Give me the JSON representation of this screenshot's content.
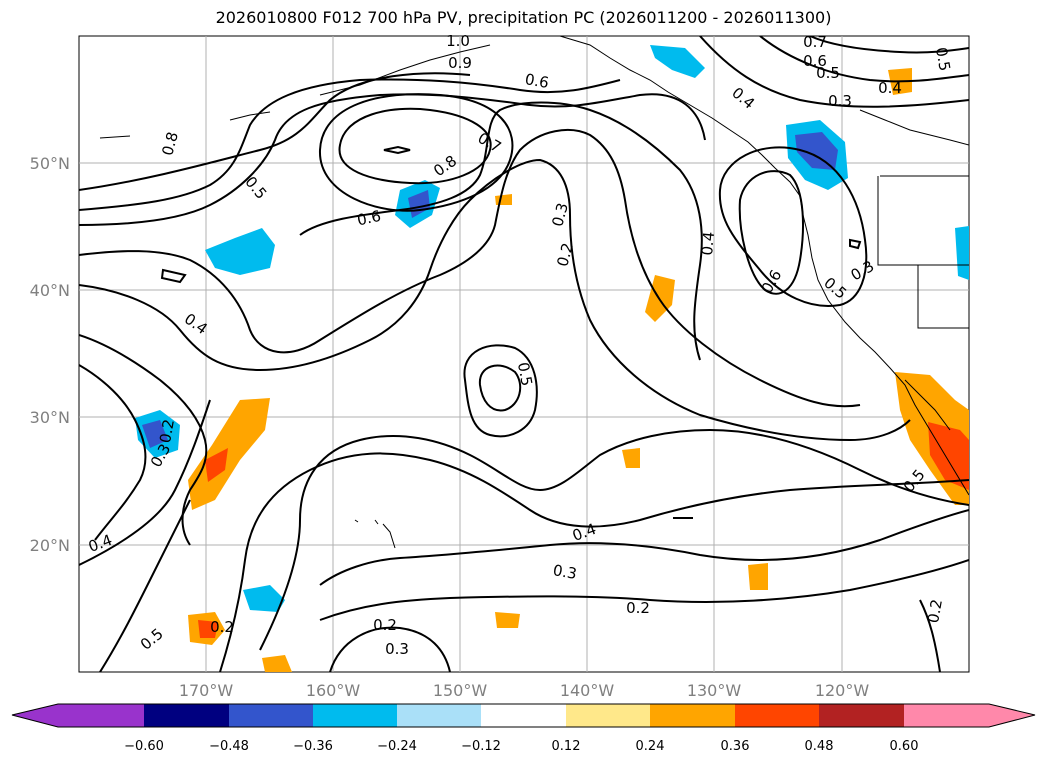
{
  "title": "2026010800 F012 700 hPa PV, precipitation PC (2026011200 - 2026011300)",
  "map": {
    "lat_labels": [
      "50°N",
      "40°N",
      "30°N",
      "20°N"
    ],
    "lon_labels": [
      "170°W",
      "160°W",
      "150°W",
      "140°W",
      "130°W",
      "120°W"
    ],
    "contour_labels": [
      "1.0",
      "0.9",
      "0.7",
      "0.6",
      "0.8",
      "0.5",
      "0.7",
      "0.8",
      "0.6",
      "0.3",
      "0.2",
      "0.4",
      "0.4",
      "0.6",
      "0.5",
      "0.3",
      "0.5",
      "0.4",
      "0.3",
      "0.5",
      "0.6",
      "0.2",
      "0.3",
      "0.4",
      "0.3",
      "0.2",
      "0.2",
      "0.2",
      "0.3",
      "0.5",
      "0.4",
      "0.5",
      "0.2",
      "0.4",
      "0.5"
    ]
  },
  "colorbar": {
    "colors": [
      "#9933cc",
      "#000080",
      "#3355cc",
      "#00bbee",
      "#aae0f8",
      "#ffffff",
      "#ffe88a",
      "#ffa500",
      "#ff4500",
      "#b22222",
      "#ff88aa"
    ],
    "tick_labels": [
      "−0.60",
      "−0.48",
      "−0.36",
      "−0.24",
      "−0.12",
      "0.12",
      "0.24",
      "0.36",
      "0.48",
      "0.60"
    ]
  }
}
